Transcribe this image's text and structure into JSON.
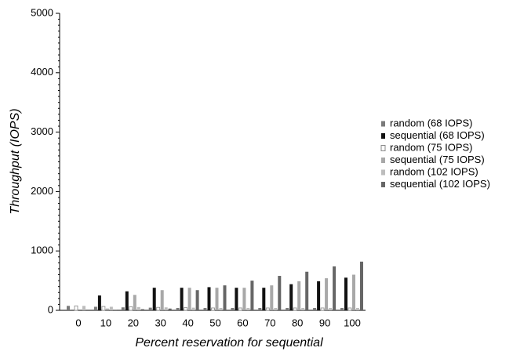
{
  "chart_data": {
    "type": "bar",
    "x_label": "Percent reservation for sequential",
    "y_label": "Throughput (IOPS)",
    "categories": [
      "0",
      "10",
      "20",
      "30",
      "40",
      "50",
      "60",
      "70",
      "80",
      "90",
      "100"
    ],
    "series": [
      {
        "name": "random (68 IOPS)",
        "color": "#7a7a7a",
        "values": [
          75,
          60,
          50,
          45,
          40,
          40,
          40,
          40,
          40,
          40,
          40
        ]
      },
      {
        "name": "sequential (68 IOPS)",
        "color": "#111111",
        "values": [
          0,
          250,
          320,
          380,
          380,
          390,
          380,
          380,
          440,
          490,
          550
        ]
      },
      {
        "name": "random (75 IOPS)",
        "color": "#ffffff",
        "values": [
          75,
          65,
          60,
          50,
          45,
          40,
          40,
          40,
          40,
          40,
          40
        ]
      },
      {
        "name": "sequential (75 IOPS)",
        "color": "#a8a8a8",
        "values": [
          0,
          30,
          260,
          340,
          380,
          380,
          380,
          420,
          490,
          540,
          600
        ]
      },
      {
        "name": "random (102 IOPS)",
        "color": "#bdbdbd",
        "values": [
          75,
          60,
          55,
          50,
          45,
          40,
          40,
          40,
          40,
          40,
          40
        ]
      },
      {
        "name": "sequential (102 IOPS)",
        "color": "#666666",
        "values": [
          0,
          10,
          20,
          30,
          340,
          420,
          500,
          580,
          650,
          740,
          820
        ]
      }
    ],
    "ylim": [
      0,
      5000
    ],
    "yticks": [
      0,
      1000,
      2000,
      3000,
      4000,
      5000
    ],
    "grid": false
  }
}
